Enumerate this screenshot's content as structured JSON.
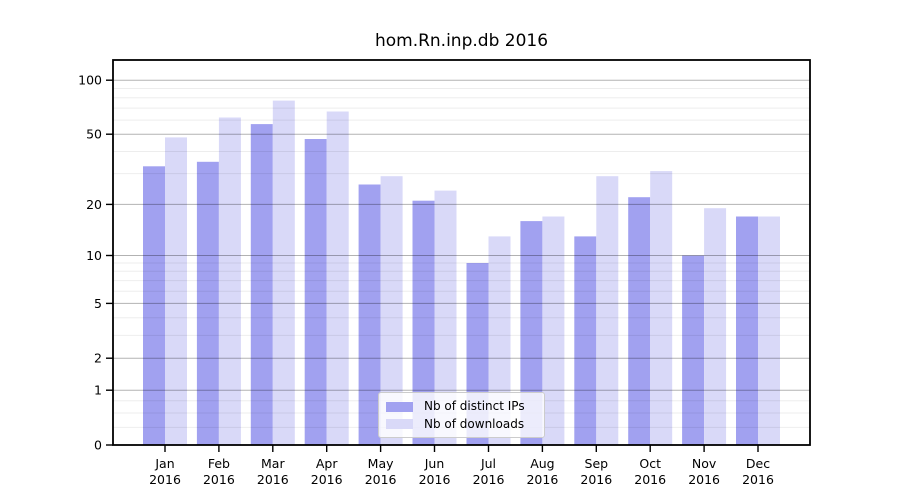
{
  "chart_data": {
    "type": "bar",
    "title": "hom.Rn.inp.db 2016",
    "categories": [
      "Jan",
      "Feb",
      "Mar",
      "Apr",
      "May",
      "Jun",
      "Jul",
      "Aug",
      "Sep",
      "Oct",
      "Nov",
      "Dec"
    ],
    "year_label": "2016",
    "series": [
      {
        "name": "Nb of distinct IPs",
        "color": "#a1a1f0",
        "values": [
          33,
          35,
          57,
          47,
          26,
          21,
          9,
          16,
          13,
          22,
          10,
          17
        ]
      },
      {
        "name": "Nb of downloads",
        "color": "#d9d9f8",
        "values": [
          48,
          62,
          77,
          67,
          29,
          24,
          13,
          17,
          29,
          31,
          19,
          17
        ]
      }
    ],
    "yscale": "log1p",
    "yticks": [
      0,
      1,
      2,
      5,
      10,
      20,
      50,
      100
    ],
    "minor_yticks": [
      0.25,
      0.5,
      0.75,
      3,
      4,
      6,
      7,
      8,
      9,
      30,
      40,
      60,
      70,
      80,
      90
    ],
    "ylim": [
      0,
      130
    ],
    "xlabel": "",
    "ylabel": "",
    "grid": true,
    "legend_position": "lower center"
  }
}
